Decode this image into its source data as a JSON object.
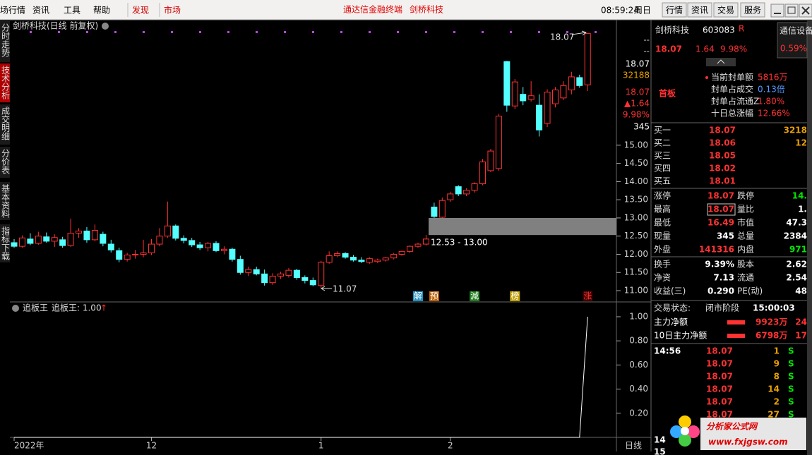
{
  "menu": {
    "items": [
      "场行情",
      "资讯",
      "工具",
      "帮助"
    ],
    "highlight": [
      "发现",
      "市场"
    ],
    "title": "通达信金融终端",
    "stock": "剑桥科技",
    "time": "08:59:24",
    "weekday": "周日",
    "buttons": [
      "行情",
      "资讯",
      "交易",
      "服务"
    ]
  },
  "side_tabs": [
    "分时走势",
    "技术分析",
    "成交明细",
    "分价表",
    "基本资料",
    "指标下载"
  ],
  "chart": {
    "title": "剑桥科技(日线 前复权)",
    "ylim": [
      10.69,
      18.14
    ],
    "yticks": [
      {
        "value": 15,
        "label": "15.00"
      },
      {
        "value": 14.5,
        "label": "14.50"
      },
      {
        "value": 14,
        "label": "14.00"
      },
      {
        "value": 13.5,
        "label": "13.50"
      },
      {
        "value": 13,
        "label": "13.00"
      },
      {
        "value": 12.5,
        "label": "12.50"
      },
      {
        "value": 12,
        "label": "12.00"
      },
      {
        "value": 11.5,
        "label": "11.50"
      },
      {
        "value": 11,
        "label": "11.00"
      }
    ],
    "candles": [
      [
        12.32,
        12.42,
        12.18,
        12.22
      ],
      [
        12.22,
        12.52,
        12.18,
        12.45
      ],
      [
        12.42,
        12.58,
        12.25,
        12.3
      ],
      [
        12.3,
        12.62,
        12.26,
        12.5
      ],
      [
        12.48,
        12.6,
        12.32,
        12.36
      ],
      [
        12.36,
        12.55,
        12.2,
        12.46
      ],
      [
        12.4,
        12.48,
        12.18,
        12.24
      ],
      [
        12.24,
        12.98,
        12.2,
        12.58
      ],
      [
        12.58,
        12.72,
        12.45,
        12.64
      ],
      [
        12.64,
        12.75,
        12.32,
        12.4
      ],
      [
        12.4,
        12.82,
        12.36,
        12.66
      ],
      [
        12.55,
        12.62,
        12.22,
        12.3
      ],
      [
        12.28,
        12.4,
        12.05,
        12.12
      ],
      [
        12.1,
        12.18,
        11.78,
        11.86
      ],
      [
        11.86,
        12.04,
        11.8,
        11.98
      ],
      [
        11.98,
        12.12,
        11.88,
        12
      ],
      [
        12,
        12.4,
        11.92,
        12.04
      ],
      [
        12.04,
        12.42,
        11.98,
        12.28
      ],
      [
        12.28,
        12.72,
        12.22,
        12.5
      ],
      [
        12.5,
        13.45,
        12.45,
        12.78
      ],
      [
        12.78,
        12.82,
        12.38,
        12.44
      ],
      [
        12.44,
        12.52,
        12.3,
        12.38
      ],
      [
        12.38,
        12.45,
        12.2,
        12.26
      ],
      [
        12.26,
        12.34,
        12.12,
        12.18
      ],
      [
        12.18,
        12.34,
        12.08,
        12.3
      ],
      [
        12.3,
        12.36,
        12.06,
        12.1
      ],
      [
        12.1,
        12.22,
        12,
        12.14
      ],
      [
        12.14,
        12.18,
        11.8,
        11.86
      ],
      [
        11.86,
        11.96,
        11.44,
        11.5
      ],
      [
        11.5,
        11.66,
        11.4,
        11.58
      ],
      [
        11.58,
        11.66,
        11.42,
        11.46
      ],
      [
        11.46,
        11.58,
        11.14,
        11.22
      ],
      [
        11.22,
        11.48,
        11.16,
        11.4
      ],
      [
        11.4,
        11.52,
        11.32,
        11.46
      ],
      [
        11.42,
        11.62,
        11.36,
        11.56
      ],
      [
        11.56,
        11.6,
        11.3,
        11.36
      ],
      [
        11.36,
        11.42,
        11.2,
        11.28
      ],
      [
        11.28,
        11.36,
        11.12,
        11.16
      ],
      [
        11.14,
        11.82,
        11.07,
        11.78
      ],
      [
        11.78,
        12.08,
        11.74,
        11.96
      ],
      [
        11.96,
        12.08,
        11.92,
        12.02
      ],
      [
        12.02,
        12.06,
        11.88,
        11.92
      ],
      [
        11.92,
        11.98,
        11.8,
        11.84
      ],
      [
        11.84,
        11.92,
        11.76,
        11.8
      ],
      [
        11.78,
        11.92,
        11.74,
        11.88
      ],
      [
        11.8,
        11.88,
        11.76,
        11.84
      ],
      [
        11.84,
        11.92,
        11.8,
        11.9
      ],
      [
        11.9,
        12.04,
        11.86,
        12
      ],
      [
        12,
        12.1,
        11.96,
        12.08
      ],
      [
        12.08,
        12.24,
        12.04,
        12.22
      ],
      [
        12.22,
        12.32,
        12.18,
        12.28
      ],
      [
        12.28,
        12.53,
        12.24,
        12.42
      ],
      [
        13.3,
        13.42,
        13,
        13.04
      ],
      [
        13.02,
        13.56,
        13,
        13.48
      ],
      [
        13.5,
        13.72,
        13.44,
        13.66
      ],
      [
        13.86,
        13.9,
        13.6,
        13.66
      ],
      [
        13.66,
        13.82,
        13.6,
        13.76
      ],
      [
        13.76,
        13.98,
        13.7,
        13.94
      ],
      [
        13.94,
        14.62,
        13.9,
        14.54
      ],
      [
        14.3,
        14.9,
        14.26,
        14.84
      ],
      [
        14.36,
        15.86,
        14.3,
        15.8
      ],
      [
        17.3,
        17.32,
        15.92,
        16.1
      ],
      [
        16.08,
        16.82,
        16,
        16.74
      ],
      [
        16.4,
        16.6,
        16.1,
        16.22
      ],
      [
        16.26,
        16.76,
        16.2,
        16.36
      ],
      [
        16.1,
        16.4,
        15.24,
        15.42
      ],
      [
        15.6,
        16.54,
        15.5,
        16.46
      ],
      [
        16.14,
        16.6,
        16.04,
        16.52
      ],
      [
        16.3,
        16.76,
        16.24,
        16.64
      ],
      [
        16.52,
        17.02,
        16.4,
        16.88
      ],
      [
        16.86,
        16.94,
        16.58,
        16.64
      ],
      [
        16.66,
        18.07,
        16.49,
        18.07
      ]
    ],
    "high_label": "18.07",
    "low_label": "11.07",
    "gap": {
      "low": 12.53,
      "high": 13,
      "label": "12.53 - 13.00"
    },
    "signals": [
      "解",
      "预",
      "減",
      "榜",
      "涨"
    ],
    "info": [
      "--",
      "--",
      "18.07",
      "32188",
      "18.07",
      "▲1.64",
      "9.98%",
      "345"
    ],
    "x_labels": [
      "2022年",
      "12",
      "1",
      "2"
    ]
  },
  "indicator": {
    "name": "追板王",
    "label": "追板王: 1.00",
    "arrow": "↑",
    "ylim": [
      0,
      1
    ],
    "yticks": [
      {
        "value": 1,
        "label": "1.00"
      },
      {
        "value": 0.8,
        "label": "0.80"
      },
      {
        "value": 0.6,
        "label": "0.60"
      },
      {
        "value": 0.4,
        "label": "0.40"
      },
      {
        "value": 0.2,
        "label": "0.20"
      }
    ],
    "values": [
      0,
      0,
      0,
      0,
      0,
      0,
      0,
      0,
      0,
      0,
      0,
      0,
      0,
      0,
      0,
      0,
      0,
      0,
      0,
      0,
      0,
      0,
      0,
      0,
      0,
      0,
      0,
      0,
      0,
      0,
      0,
      0,
      0,
      0,
      0,
      0,
      0,
      0,
      0,
      0,
      0,
      0,
      0,
      0,
      0,
      0,
      0,
      0,
      0,
      0,
      0,
      0,
      0,
      0,
      0,
      0,
      0,
      0,
      0,
      0,
      0,
      0,
      0,
      0,
      0,
      0,
      0,
      0,
      0,
      0,
      0,
      1
    ]
  },
  "timeframe": "日线",
  "quote": {
    "name": "剑桥科技",
    "code": "603083",
    "flag": "R",
    "sector": "通信设备",
    "sector_change": "0.59%",
    "price": "18.07",
    "change": "1.64",
    "pct": "9.98%",
    "board": "首板",
    "seal": [
      [
        "当前封单额",
        "5816万"
      ],
      [
        "封单占成交",
        "0.13倍"
      ],
      [
        "封单占流通Z",
        "1.80%"
      ],
      [
        "十日总涨幅",
        "12.66%"
      ]
    ],
    "bids": [
      [
        "买一",
        "18.07",
        "3218"
      ],
      [
        "买二",
        "18.06",
        "12"
      ],
      [
        "买三",
        "18.05"
      ],
      [
        "买四",
        "18.02"
      ],
      [
        "买五",
        "18.01"
      ]
    ],
    "stats": [
      [
        "涨停",
        "18.07",
        "跌停",
        "14."
      ],
      [
        "最高",
        "18.07",
        "量比",
        "1."
      ],
      [
        "最低",
        "16.49",
        "市值",
        "47.3"
      ],
      [
        "现量",
        "345",
        "总量",
        "2384"
      ],
      [
        "外盘",
        "141316",
        "内盘",
        "971"
      ],
      [
        "换手",
        "9.39%",
        "股本",
        "2.62"
      ],
      [
        "净资",
        "7.13",
        "流通",
        "2.54"
      ],
      [
        "收益(三)",
        "0.290",
        "PE(动)",
        "48"
      ]
    ],
    "status": [
      "交易状态:",
      "闭市阶段",
      "15:00:03"
    ],
    "flows": [
      [
        "主力净额",
        "9923万",
        "24"
      ],
      [
        "10日主力净额",
        "6798万",
        "17"
      ]
    ],
    "tick_time": "14:56",
    "ticks": [
      [
        "18.07",
        "1",
        "S"
      ],
      [
        "18.07",
        "9",
        "S"
      ],
      [
        "18.07",
        "8",
        "S"
      ],
      [
        "18.07",
        "14",
        "S"
      ],
      [
        "18.07",
        "2",
        "S"
      ],
      [
        "18.07",
        "27",
        "S"
      ]
    ],
    "tail": [
      "14",
      "15"
    ]
  },
  "watermark": {
    "name": "分析家公式网",
    "url": "www.fxjgsw.com"
  }
}
